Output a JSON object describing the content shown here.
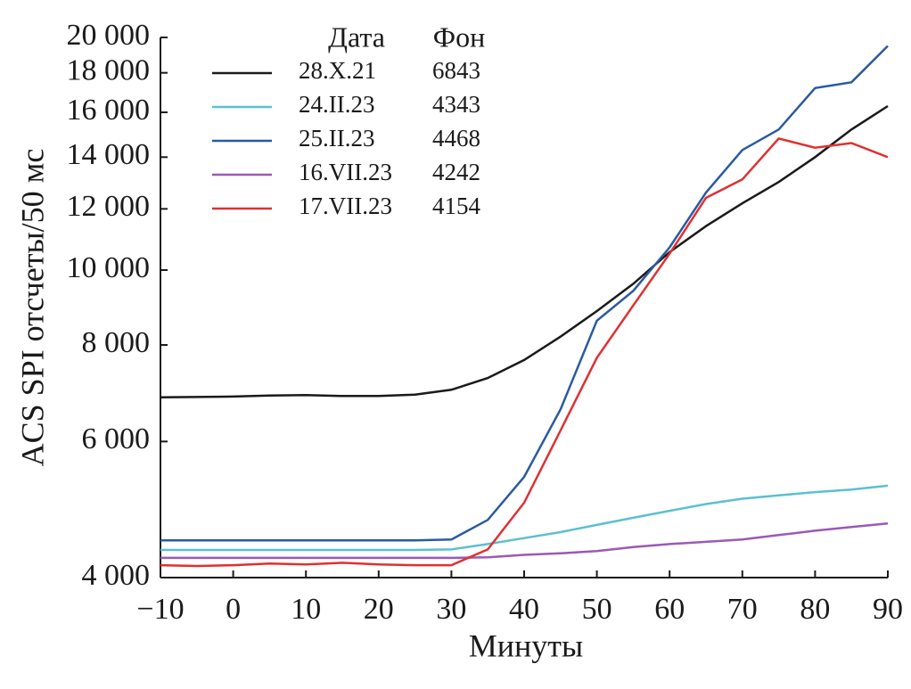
{
  "chart_data": {
    "type": "line",
    "y_label": "ACS SPI отсчеты/50 мс",
    "x_label": "Минуты",
    "legend_headers": [
      "Дата",
      "Фон"
    ],
    "log_y": true,
    "xlim": [
      -10,
      90
    ],
    "xticks": [
      {
        "value": -10,
        "label": "−10"
      },
      0,
      10,
      20,
      30,
      40,
      50,
      60,
      70,
      80,
      90
    ],
    "ylim": [
      4000,
      20000
    ],
    "yticks": [
      {
        "value": 4000,
        "label": "4 000"
      },
      {
        "value": 6000,
        "label": "6 000"
      },
      {
        "value": 8000,
        "label": "8 000"
      },
      {
        "value": 10000,
        "label": "10 000"
      },
      {
        "value": 12000,
        "label": "12 000"
      },
      {
        "value": 14000,
        "label": "14 000"
      },
      {
        "value": 16000,
        "label": "16 000"
      },
      {
        "value": 18000,
        "label": "18 000"
      },
      {
        "value": 20000,
        "label": "20 000"
      }
    ],
    "x": [
      -10,
      -5,
      0,
      5,
      10,
      15,
      20,
      25,
      30,
      35,
      40,
      45,
      50,
      55,
      60,
      65,
      70,
      75,
      80,
      85,
      90
    ],
    "series": [
      {
        "name": "28.X.21",
        "background": 6843,
        "color": "#1a1a1a",
        "values": [
          6843,
          6850,
          6860,
          6880,
          6890,
          6870,
          6870,
          6900,
          7000,
          7250,
          7650,
          8200,
          8850,
          9600,
          10550,
          11400,
          12200,
          13000,
          14000,
          15200,
          16300
        ]
      },
      {
        "name": "24.II.23",
        "background": 4343,
        "color": "#5bc0d0",
        "values": [
          4343,
          4343,
          4343,
          4343,
          4343,
          4343,
          4343,
          4343,
          4350,
          4420,
          4500,
          4580,
          4680,
          4780,
          4880,
          4980,
          5060,
          5110,
          5160,
          5200,
          5260
        ]
      },
      {
        "name": "25.II.23",
        "background": 4468,
        "color": "#2a5aa0",
        "values": [
          4468,
          4468,
          4468,
          4468,
          4468,
          4468,
          4468,
          4468,
          4480,
          4750,
          5400,
          6600,
          8600,
          9400,
          10700,
          12600,
          14300,
          15200,
          17200,
          17500,
          19500
        ]
      },
      {
        "name": "16.VII.23",
        "background": 4242,
        "color": "#9b59b6",
        "values": [
          4242,
          4242,
          4242,
          4242,
          4242,
          4242,
          4242,
          4242,
          4242,
          4250,
          4280,
          4300,
          4330,
          4380,
          4420,
          4450,
          4480,
          4540,
          4600,
          4650,
          4700
        ]
      },
      {
        "name": "17.VII.23",
        "background": 4154,
        "color": "#e03030",
        "values": [
          4150,
          4140,
          4150,
          4170,
          4160,
          4180,
          4160,
          4150,
          4150,
          4350,
          5000,
          6200,
          7700,
          9000,
          10500,
          12400,
          13100,
          14800,
          14400,
          14600,
          14000
        ]
      }
    ]
  }
}
